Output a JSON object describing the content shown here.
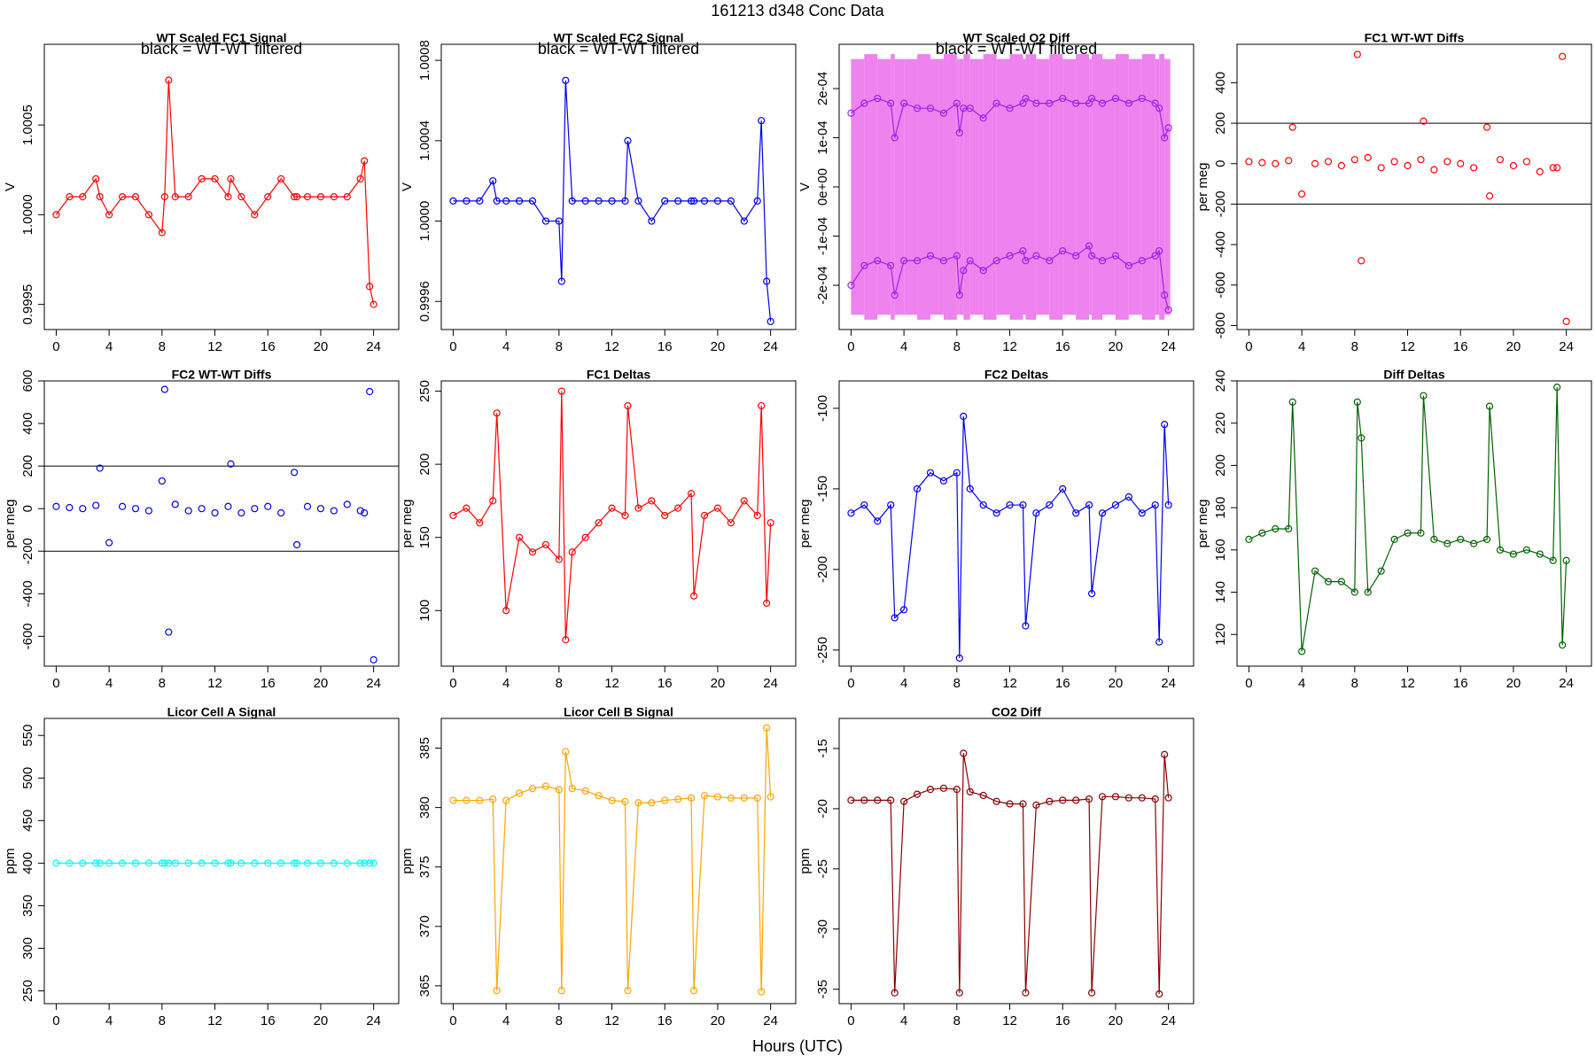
{
  "title": "161213   d348   Conc Data",
  "xlabel": "Hours (UTC)",
  "chart_data": [
    {
      "type": "line",
      "title": "WT Scaled FC1 Signal",
      "annotation": "black = WT-WT filtered",
      "ylabel": "V",
      "color": "#ff0000",
      "x": [
        0,
        1,
        2,
        3,
        3.3,
        4,
        5,
        6,
        7,
        8,
        8.2,
        8.5,
        9,
        10,
        11,
        12,
        13,
        13.2,
        14,
        15,
        16,
        17,
        18,
        18.2,
        19,
        20,
        21,
        22,
        23,
        23.3,
        23.7,
        24
      ],
      "values": [
        1.0,
        1.0001,
        1.0001,
        1.0002,
        1.0001,
        1.0,
        1.0001,
        1.0001,
        1.0,
        0.9999,
        1.0001,
        1.00075,
        1.0001,
        1.0001,
        1.0002,
        1.0002,
        1.0001,
        1.0002,
        1.0001,
        1.0,
        1.0001,
        1.0002,
        1.0001,
        1.0001,
        1.0001,
        1.0001,
        1.0001,
        1.0001,
        1.0002,
        1.0003,
        0.9996,
        0.9995
      ],
      "xlim": [
        -0.9,
        25.9
      ],
      "xticks": [
        0,
        4,
        8,
        12,
        16,
        20,
        24
      ],
      "ylim": [
        0.99936,
        1.00095
      ],
      "yticks": [
        0.9995,
        {
          "value": 1,
          "label": "1.0000"
        },
        1.0005
      ]
    },
    {
      "type": "line",
      "title": "WT Scaled FC2 Signal",
      "annotation": "black = WT-WT filtered",
      "ylabel": "V",
      "color": "#0000ee",
      "x": [
        0,
        1,
        2,
        3,
        3.3,
        4,
        5,
        6,
        7,
        8,
        8.2,
        8.5,
        9,
        10,
        11,
        12,
        13,
        13.2,
        14,
        15,
        16,
        17,
        18,
        18.2,
        19,
        20,
        21,
        22,
        23,
        23.3,
        23.7,
        24
      ],
      "values": [
        1.0001,
        1.0001,
        1.0001,
        1.0002,
        1.0001,
        1.0001,
        1.0001,
        1.0001,
        1.0,
        1.0,
        0.9997,
        1.0007,
        1.0001,
        1.0001,
        1.0001,
        1.0001,
        1.0001,
        1.0004,
        1.0001,
        1.0,
        1.0001,
        1.0001,
        1.0001,
        1.0001,
        1.0001,
        1.0001,
        1.0001,
        1.0,
        1.0001,
        1.0005,
        0.9997,
        0.9995
      ],
      "xlim": [
        -0.9,
        25.9
      ],
      "xticks": [
        0,
        4,
        8,
        12,
        16,
        20,
        24
      ],
      "ylim": [
        0.99946,
        1.00088
      ],
      "yticks": [
        0.9996,
        {
          "value": 1,
          "label": "1.0000"
        },
        1.0004,
        1.0008
      ]
    },
    {
      "type": "line",
      "title": "WT Scaled O2 Diff",
      "annotation": "black = WT-WT filtered",
      "ylabel": "V",
      "x": [
        0,
        1,
        2,
        3,
        3.3,
        4,
        5,
        6,
        7,
        8,
        8.2,
        8.5,
        9,
        10,
        11,
        12,
        13,
        13.2,
        14,
        15,
        16,
        17,
        18,
        18.2,
        19,
        20,
        21,
        22,
        23,
        23.3,
        23.7,
        24
      ],
      "band": {
        "color": "#ee82ee",
        "high": [
          0.00026,
          0.00027,
          0.00026,
          0.00027,
          0.00026,
          0.00026,
          0.00027,
          0.00026,
          0.00027,
          0.00026,
          0.00026,
          0.00027,
          0.00026,
          0.00027,
          0.00026,
          0.00027,
          0.00026,
          0.00027,
          0.00026,
          0.00027,
          0.00026,
          0.00027,
          0.00026,
          0.00027,
          0.00026,
          0.00027,
          0.00026,
          0.00027,
          0.00026,
          0.00027,
          0.00026,
          0.00026
        ],
        "low": [
          -0.00026,
          -0.00027,
          -0.00026,
          -0.00027,
          -0.00026,
          -0.00026,
          -0.00027,
          -0.00026,
          -0.00027,
          -0.00026,
          -0.00026,
          -0.00027,
          -0.00026,
          -0.00027,
          -0.00026,
          -0.00027,
          -0.00026,
          -0.00027,
          -0.00026,
          -0.00027,
          -0.00026,
          -0.00027,
          -0.00026,
          -0.00027,
          -0.00026,
          -0.00027,
          -0.00026,
          -0.00027,
          -0.00026,
          -0.00027,
          -0.00026,
          -0.00026
        ]
      },
      "series": [
        {
          "color": "#a020f0",
          "values": [
            0.00015,
            0.00017,
            0.00018,
            0.00017,
            0.0001,
            0.00017,
            0.00016,
            0.00016,
            0.00015,
            0.00017,
            0.00011,
            0.00016,
            0.00016,
            0.00014,
            0.00017,
            0.00016,
            0.00017,
            0.00018,
            0.00017,
            0.00017,
            0.00018,
            0.00017,
            0.00017,
            0.00018,
            0.00017,
            0.00018,
            0.00017,
            0.00018,
            0.00017,
            0.00016,
            0.0001,
            0.00012
          ]
        },
        {
          "color": "#a020f0",
          "values": [
            -0.0002,
            -0.00016,
            -0.00015,
            -0.00016,
            -0.00022,
            -0.00015,
            -0.00015,
            -0.00014,
            -0.00015,
            -0.00014,
            -0.00022,
            -0.00017,
            -0.00015,
            -0.00017,
            -0.00015,
            -0.00014,
            -0.00013,
            -0.00015,
            -0.00014,
            -0.00015,
            -0.00013,
            -0.00014,
            -0.00012,
            -0.00014,
            -0.00015,
            -0.00014,
            -0.00016,
            -0.00015,
            -0.00014,
            -0.00013,
            -0.00022,
            -0.00025
          ]
        }
      ],
      "xlim": [
        -0.9,
        25.9
      ],
      "xticks": [
        0,
        4,
        8,
        12,
        16,
        20,
        24
      ],
      "ylim": [
        -0.00029,
        0.00029
      ],
      "yticks": [
        {
          "value": -0.0002,
          "label": "-2e-04"
        },
        {
          "value": -0.0001,
          "label": "-1e-04"
        },
        {
          "value": 0,
          "label": "0e+00"
        },
        {
          "value": 0.0001,
          "label": "1e-04"
        },
        {
          "value": 0.0002,
          "label": "2e-04"
        }
      ]
    },
    {
      "type": "scatter",
      "title": "FC1 WT-WT Diffs",
      "ylabel": "per meg",
      "color": "#ff0000",
      "hlines": [
        200,
        -200
      ],
      "x": [
        0,
        1,
        2,
        3,
        3.3,
        4,
        5,
        6,
        7,
        8,
        8.2,
        8.5,
        9,
        10,
        11,
        12,
        13,
        13.2,
        14,
        15,
        16,
        17,
        18,
        18.2,
        19,
        20,
        21,
        22,
        23,
        23.3,
        23.7,
        24
      ],
      "values": [
        10,
        5,
        0,
        15,
        180,
        -150,
        0,
        10,
        -10,
        20,
        540,
        -480,
        30,
        -20,
        10,
        -10,
        20,
        210,
        -30,
        10,
        0,
        -20,
        180,
        -160,
        20,
        -10,
        10,
        -40,
        -20,
        -20,
        530,
        -780
      ],
      "xlim": [
        -0.9,
        25.9
      ],
      "xticks": [
        0,
        4,
        8,
        12,
        16,
        20,
        24
      ],
      "ylim": [
        -820,
        590
      ],
      "yticks": [
        -800,
        -600,
        -400,
        -200,
        0,
        200,
        400
      ]
    },
    {
      "type": "scatter",
      "title": "FC2 WT-WT Diffs",
      "ylabel": "per meg",
      "color": "#0000ee",
      "hlines": [
        200,
        -200
      ],
      "x": [
        0,
        1,
        2,
        3,
        3.3,
        4,
        5,
        6,
        7,
        8,
        8.2,
        8.5,
        9,
        10,
        11,
        12,
        13,
        13.2,
        14,
        15,
        16,
        17,
        18,
        18.2,
        19,
        20,
        21,
        22,
        23,
        23.3,
        23.7,
        24
      ],
      "values": [
        10,
        5,
        0,
        15,
        190,
        -160,
        10,
        0,
        -10,
        130,
        560,
        -580,
        20,
        -10,
        0,
        -20,
        10,
        210,
        -20,
        0,
        10,
        -20,
        170,
        -170,
        10,
        0,
        -10,
        20,
        -10,
        -20,
        550,
        -710
      ],
      "xlim": [
        -0.9,
        25.9
      ],
      "xticks": [
        0,
        4,
        8,
        12,
        16,
        20,
        24
      ],
      "ylim": [
        -740,
        600
      ],
      "yticks": [
        -600,
        -400,
        -200,
        0,
        200,
        400,
        600
      ]
    },
    {
      "type": "line",
      "title": "FC1 Deltas",
      "ylabel": "per meg",
      "color": "#ff0000",
      "x": [
        0,
        1,
        2,
        3,
        3.3,
        4,
        5,
        6,
        7,
        8,
        8.2,
        8.5,
        9,
        10,
        11,
        12,
        13,
        13.2,
        14,
        15,
        16,
        17,
        18,
        18.2,
        19,
        20,
        21,
        22,
        23,
        23.3,
        23.7,
        24
      ],
      "values": [
        165,
        170,
        160,
        175,
        235,
        100,
        150,
        140,
        145,
        135,
        250,
        80,
        140,
        150,
        160,
        170,
        165,
        240,
        170,
        175,
        165,
        170,
        180,
        110,
        165,
        170,
        160,
        175,
        165,
        240,
        105,
        160
      ],
      "xlim": [
        -0.9,
        25.9
      ],
      "xticks": [
        0,
        4,
        8,
        12,
        16,
        20,
        24
      ],
      "ylim": [
        62,
        257
      ],
      "yticks": [
        100,
        150,
        200,
        250
      ]
    },
    {
      "type": "line",
      "title": "FC2 Deltas",
      "ylabel": "per meg",
      "color": "#0000ee",
      "x": [
        0,
        1,
        2,
        3,
        3.3,
        4,
        5,
        6,
        7,
        8,
        8.2,
        8.5,
        9,
        10,
        11,
        12,
        13,
        13.2,
        14,
        15,
        16,
        17,
        18,
        18.2,
        19,
        20,
        21,
        22,
        23,
        23.3,
        23.7,
        24
      ],
      "values": [
        -165,
        -160,
        -170,
        -160,
        -230,
        -225,
        -150,
        -140,
        -145,
        -140,
        -255,
        -105,
        -150,
        -160,
        -165,
        -160,
        -160,
        -235,
        -165,
        -160,
        -150,
        -165,
        -160,
        -215,
        -165,
        -160,
        -155,
        -165,
        -160,
        -245,
        -110,
        -160
      ],
      "xlim": [
        -0.9,
        25.9
      ],
      "xticks": [
        0,
        4,
        8,
        12,
        16,
        20,
        24
      ],
      "ylim": [
        -260,
        -83
      ],
      "yticks": [
        -250,
        -200,
        -150,
        -100
      ]
    },
    {
      "type": "line",
      "title": "Diff Deltas",
      "ylabel": "per meg",
      "color": "#006400",
      "x": [
        0,
        1,
        2,
        3,
        3.3,
        4,
        5,
        6,
        7,
        8,
        8.2,
        8.5,
        9,
        10,
        11,
        12,
        13,
        13.2,
        14,
        15,
        16,
        17,
        18,
        18.2,
        19,
        20,
        21,
        22,
        23,
        23.3,
        23.7,
        24
      ],
      "values": [
        165,
        168,
        170,
        170,
        230,
        112,
        150,
        145,
        145,
        140,
        230,
        213,
        140,
        150,
        165,
        168,
        168,
        233,
        165,
        163,
        165,
        163,
        165,
        228,
        160,
        158,
        160,
        158,
        155,
        237,
        115,
        155
      ],
      "xlim": [
        -0.9,
        25.9
      ],
      "xticks": [
        0,
        4,
        8,
        12,
        16,
        20,
        24
      ],
      "ylim": [
        105,
        240
      ],
      "yticks": [
        120,
        140,
        160,
        180,
        200,
        220,
        240
      ]
    },
    {
      "type": "line",
      "title": "Licor Cell A Signal",
      "ylabel": "ppm",
      "color": "#00ffff",
      "x": [
        0,
        1,
        2,
        3,
        3.3,
        4,
        5,
        6,
        7,
        8,
        8.2,
        8.5,
        9,
        10,
        11,
        12,
        13,
        13.2,
        14,
        15,
        16,
        17,
        18,
        18.2,
        19,
        20,
        21,
        22,
        23,
        23.3,
        23.7,
        24
      ],
      "values": [
        400,
        400,
        400,
        400,
        400,
        400,
        400,
        400,
        400,
        400,
        400,
        400,
        400,
        400,
        400,
        400,
        400,
        400,
        400,
        400,
        400,
        400,
        400,
        400,
        400,
        400,
        400,
        400,
        400,
        400,
        400,
        400
      ],
      "xlim": [
        -0.9,
        25.9
      ],
      "xticks": [
        0,
        4,
        8,
        12,
        16,
        20,
        24
      ],
      "ylim": [
        235,
        570
      ],
      "yticks": [
        250,
        300,
        350,
        400,
        450,
        500,
        550
      ]
    },
    {
      "type": "line",
      "title": "Licor Cell B Signal",
      "ylabel": "ppm",
      "color": "#ffa500",
      "x": [
        0,
        1,
        2,
        3,
        3.3,
        4,
        5,
        6,
        7,
        8,
        8.2,
        8.5,
        9,
        10,
        11,
        12,
        13,
        13.2,
        14,
        15,
        16,
        17,
        18,
        18.2,
        19,
        20,
        21,
        22,
        23,
        23.3,
        23.7,
        24
      ],
      "values": [
        380.6,
        380.6,
        380.6,
        380.7,
        364.6,
        380.6,
        381.2,
        381.6,
        381.8,
        381.5,
        364.6,
        384.7,
        381.6,
        381.4,
        381.0,
        380.6,
        380.5,
        364.6,
        380.4,
        380.4,
        380.6,
        380.7,
        380.8,
        364.6,
        381.0,
        380.9,
        380.8,
        380.8,
        380.8,
        364.5,
        386.7,
        380.9
      ],
      "xlim": [
        -0.9,
        25.9
      ],
      "xticks": [
        0,
        4,
        8,
        12,
        16,
        20,
        24
      ],
      "ylim": [
        363.5,
        387.5
      ],
      "yticks": [
        365,
        370,
        375,
        380,
        385
      ]
    },
    {
      "type": "line",
      "title": "CO2 Diff",
      "ylabel": "ppm",
      "color": "#8b0000",
      "x": [
        0,
        1,
        2,
        3,
        3.3,
        4,
        5,
        6,
        7,
        8,
        8.2,
        8.5,
        9,
        10,
        11,
        12,
        13,
        13.2,
        14,
        15,
        16,
        17,
        18,
        18.2,
        19,
        20,
        21,
        22,
        23,
        23.3,
        23.7,
        24
      ],
      "values": [
        -19.3,
        -19.3,
        -19.3,
        -19.3,
        -35.3,
        -19.4,
        -18.8,
        -18.4,
        -18.3,
        -18.4,
        -35.3,
        -15.4,
        -18.6,
        -18.9,
        -19.4,
        -19.6,
        -19.6,
        -35.3,
        -19.7,
        -19.4,
        -19.3,
        -19.3,
        -19.2,
        -35.3,
        -19.0,
        -19.0,
        -19.1,
        -19.1,
        -19.2,
        -35.4,
        -15.5,
        -19.1
      ],
      "xlim": [
        -0.9,
        25.9
      ],
      "xticks": [
        0,
        4,
        8,
        12,
        16,
        20,
        24
      ],
      "ylim": [
        -36.2,
        -12.5
      ],
      "yticks": [
        -35,
        -30,
        -25,
        -20,
        -15
      ]
    }
  ]
}
